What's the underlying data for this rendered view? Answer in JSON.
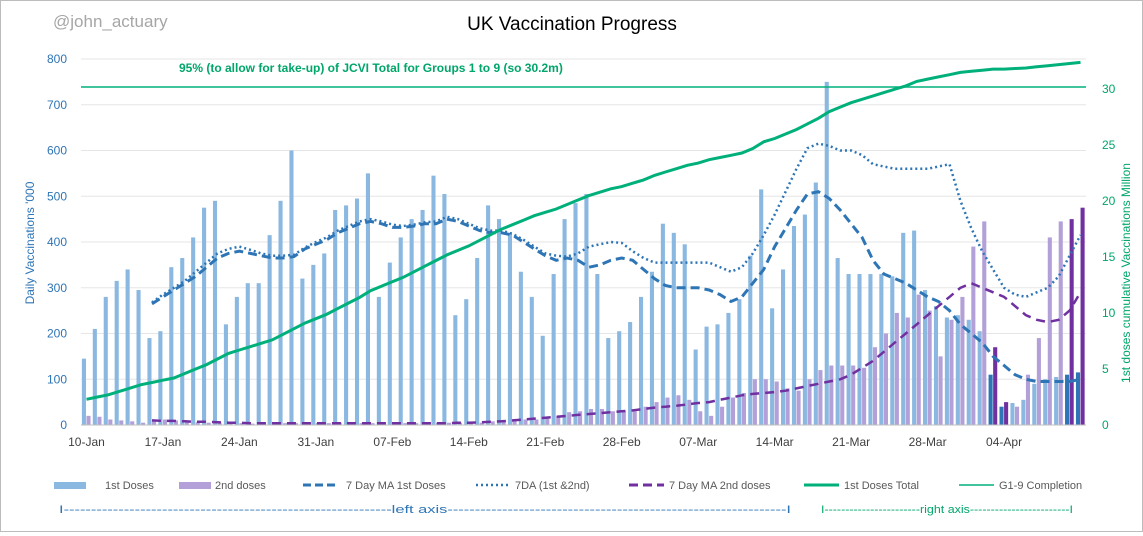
{
  "chart_data": {
    "type": "bar",
    "title": "UK Vaccination Progress",
    "watermark": "@john_actuary",
    "annotation": "95% (to allow for take-up) of JCVI Total for Groups 1 to 9 (so 30.2m)",
    "ylabel_left": "Daily Vaccinations '000",
    "ylabel_right": "1st doses cumulative Vaccinations Million",
    "ylim_left": [
      0,
      800
    ],
    "ylim_right": [
      0,
      32.7
    ],
    "yticks_left": [
      "0",
      "100",
      "200",
      "300",
      "400",
      "500",
      "600",
      "700",
      "800"
    ],
    "yticks_right": [
      "0",
      "5",
      "10",
      "15",
      "20",
      "25",
      "30"
    ],
    "x_tick_labels": [
      "10-Jan",
      "17-Jan",
      "24-Jan",
      "31-Jan",
      "07-Feb",
      "14-Feb",
      "21-Feb",
      "28-Feb",
      "07-Mar",
      "14-Mar",
      "21-Mar",
      "28-Mar",
      "04-Apr"
    ],
    "n_days": 92,
    "g19_target_million": 30.2,
    "series": {
      "first_doses": [
        145,
        210,
        280,
        315,
        340,
        295,
        190,
        205,
        345,
        365,
        410,
        475,
        490,
        220,
        280,
        310,
        310,
        415,
        490,
        600,
        320,
        350,
        375,
        470,
        480,
        495,
        550,
        280,
        355,
        410,
        450,
        470,
        545,
        505,
        240,
        275,
        365,
        480,
        450,
        420,
        335,
        280,
        195,
        330,
        450,
        485,
        505,
        330,
        190,
        205,
        225,
        280,
        335,
        440,
        420,
        395,
        165,
        215,
        220,
        245,
        275,
        370,
        515,
        255,
        340,
        435,
        460,
        530,
        750,
        365,
        330,
        330,
        330,
        330,
        325,
        420,
        425,
        295,
        260,
        235,
        240,
        230,
        205,
        110,
        40,
        48,
        55,
        90,
        100,
        105,
        110,
        115
      ],
      "second_doses": [
        20,
        18,
        12,
        10,
        8,
        5,
        8,
        12,
        10,
        8,
        6,
        5,
        5,
        5,
        4,
        3,
        4,
        4,
        4,
        4,
        4,
        4,
        4,
        5,
        5,
        4,
        4,
        4,
        4,
        4,
        4,
        5,
        5,
        5,
        5,
        5,
        5,
        8,
        10,
        12,
        12,
        12,
        15,
        20,
        28,
        30,
        35,
        35,
        30,
        30,
        30,
        40,
        50,
        60,
        65,
        55,
        30,
        20,
        40,
        60,
        70,
        100,
        100,
        95,
        80,
        75,
        100,
        120,
        130,
        130,
        130,
        125,
        170,
        200,
        245,
        235,
        285,
        250,
        150,
        230,
        280,
        390,
        445,
        170,
        50,
        40,
        110,
        190,
        410,
        445,
        450,
        475
      ],
      "ma_first": [
        null,
        null,
        null,
        null,
        null,
        null,
        265,
        280,
        295,
        310,
        325,
        345,
        365,
        375,
        380,
        375,
        370,
        365,
        365,
        368,
        385,
        395,
        405,
        420,
        430,
        440,
        445,
        440,
        432,
        432,
        435,
        440,
        440,
        450,
        445,
        435,
        425,
        420,
        420,
        415,
        400,
        385,
        370,
        360,
        365,
        360,
        345,
        350,
        360,
        365,
        360,
        340,
        320,
        305,
        300,
        300,
        300,
        295,
        285,
        270,
        280,
        310,
        340,
        390,
        430,
        470,
        505,
        510,
        495,
        470,
        440,
        410,
        360,
        330,
        320,
        310,
        295,
        280,
        270,
        250,
        220,
        200,
        180,
        150,
        130,
        110,
        100,
        95,
        95,
        95,
        95,
        100
      ],
      "ma_total": [
        null,
        null,
        null,
        null,
        null,
        null,
        268,
        285,
        300,
        315,
        335,
        355,
        375,
        385,
        390,
        383,
        375,
        370,
        370,
        372,
        388,
        400,
        410,
        425,
        435,
        445,
        450,
        445,
        438,
        435,
        438,
        443,
        445,
        455,
        450,
        440,
        430,
        425,
        425,
        418,
        405,
        390,
        375,
        370,
        368,
        375,
        390,
        395,
        400,
        398,
        380,
        365,
        355,
        355,
        355,
        355,
        355,
        355,
        345,
        335,
        345,
        375,
        415,
        460,
        510,
        560,
        605,
        615,
        610,
        600,
        600,
        590,
        570,
        565,
        560,
        560,
        560,
        560,
        565,
        570,
        490,
        430,
        380,
        340,
        300,
        285,
        280,
        290,
        300,
        325,
        370,
        415
      ],
      "ma_second": [
        null,
        null,
        null,
        null,
        null,
        null,
        10,
        9,
        9,
        8,
        7,
        7,
        6,
        5,
        5,
        4,
        4,
        4,
        4,
        4,
        4,
        4,
        4,
        4,
        4,
        4,
        4,
        4,
        4,
        4,
        4,
        4,
        4,
        4,
        5,
        5,
        6,
        7,
        8,
        10,
        12,
        14,
        16,
        18,
        20,
        22,
        24,
        26,
        28,
        30,
        32,
        35,
        38,
        40,
        42,
        45,
        48,
        50,
        55,
        60,
        65,
        68,
        70,
        72,
        75,
        80,
        85,
        90,
        95,
        100,
        110,
        125,
        140,
        160,
        180,
        200,
        220,
        240,
        260,
        280,
        300,
        310,
        300,
        290,
        280,
        260,
        240,
        230,
        225,
        230,
        250,
        290
      ],
      "total_first": [
        2.3,
        2.5,
        2.7,
        3.0,
        3.3,
        3.6,
        3.8,
        4.0,
        4.2,
        4.6,
        5.0,
        5.4,
        5.9,
        6.4,
        6.7,
        7.0,
        7.3,
        7.6,
        8.1,
        8.6,
        9.1,
        9.5,
        9.9,
        10.4,
        10.9,
        11.4,
        12.0,
        12.4,
        12.8,
        13.2,
        13.7,
        14.2,
        14.7,
        15.2,
        15.6,
        16.0,
        16.5,
        17.0,
        17.5,
        17.9,
        18.3,
        18.7,
        19.0,
        19.3,
        19.7,
        20.1,
        20.5,
        20.8,
        21.1,
        21.3,
        21.6,
        21.9,
        22.3,
        22.6,
        22.9,
        23.2,
        23.4,
        23.7,
        23.9,
        24.1,
        24.3,
        24.7,
        25.3,
        25.6,
        26.0,
        26.4,
        26.9,
        27.4,
        28.0,
        28.4,
        28.8,
        29.1,
        29.4,
        29.7,
        30.0,
        30.3,
        30.7,
        30.9,
        31.1,
        31.3,
        31.5,
        31.6,
        31.7,
        31.8,
        31.8,
        31.85,
        31.9,
        32.0,
        32.1,
        32.2,
        32.3,
        32.4
      ]
    },
    "legend": {
      "first_doses": "1st Doses",
      "second_doses": "2nd doses",
      "ma_first": "7 Day MA 1st Doses",
      "ma_total": "7DA (1st &2nd)",
      "ma_second": "7 Day MA 2nd doses",
      "total_first": "1st Doses Total",
      "g19": "G1-9 Completion"
    },
    "axis_notes": {
      "left": "I------------------------------------------------------------left axis--------------------------------------------------------------I",
      "right": "I-----------------------right axis------------------------I"
    },
    "colors": {
      "first_bar": "#8ab8e0",
      "second_bar": "#b3a0d8",
      "first_bar_dark": "#2e75b6",
      "second_bar_dark": "#7030a0",
      "ma_first": "#2e75b6",
      "ma_second": "#7030a0",
      "total_green": "#00b07a",
      "axis_text": "#2e75b6",
      "right_axis_text": "#00a66a"
    }
  }
}
